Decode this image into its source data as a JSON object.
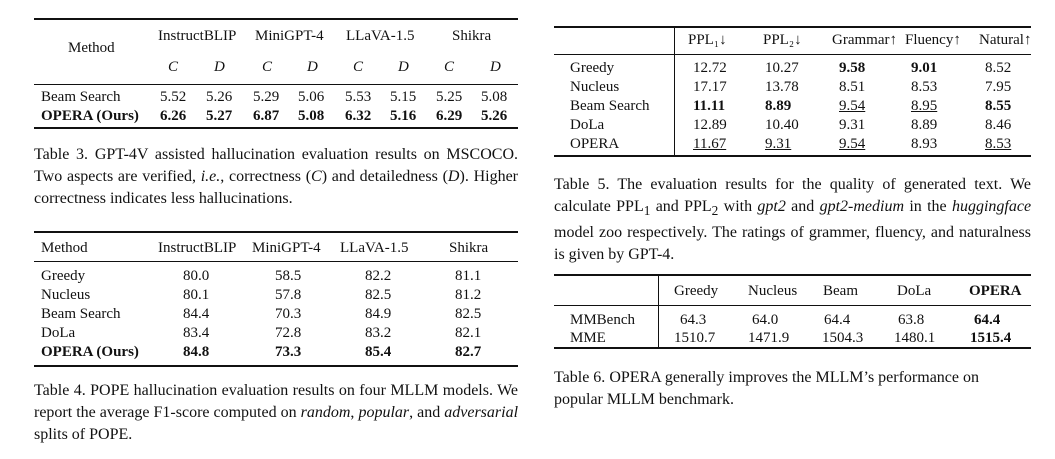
{
  "table3": {
    "header": {
      "method": "Method",
      "models": [
        "InstructBLIP",
        "MiniGPT-4",
        "LLaVA-1.5",
        "Shikra"
      ],
      "sub": [
        "C",
        "D"
      ]
    },
    "rows": [
      {
        "method": "Beam Search",
        "values": [
          "5.52",
          "5.26",
          "5.29",
          "5.06",
          "5.53",
          "5.15",
          "5.25",
          "5.08"
        ],
        "bold": false
      },
      {
        "method": "OPERA (Ours)",
        "values": [
          "6.26",
          "5.27",
          "6.87",
          "5.08",
          "6.32",
          "5.16",
          "6.29",
          "5.26"
        ],
        "bold": true
      }
    ],
    "caption": {
      "label": "Table 3.",
      "p1": "GPT-4V assisted hallucination evaluation results on MSCOCO. Two aspects are verified,",
      "ie": "i.e.",
      "p2": ", correctness (",
      "c": "C",
      "p3": ") and detailedness (",
      "d": "D",
      "p4": "). Higher correctness indicates less hallucinations."
    }
  },
  "table4": {
    "header": [
      "Method",
      "InstructBLIP",
      "MiniGPT-4",
      "LLaVA-1.5",
      "Shikra"
    ],
    "rows": [
      {
        "method": "Greedy",
        "values": [
          "80.0",
          "58.5",
          "82.2",
          "81.1"
        ],
        "bold": false
      },
      {
        "method": "Nucleus",
        "values": [
          "80.1",
          "57.8",
          "82.5",
          "81.2"
        ],
        "bold": false
      },
      {
        "method": "Beam Search",
        "values": [
          "84.4",
          "70.3",
          "84.9",
          "82.5"
        ],
        "bold": false
      },
      {
        "method": "DoLa",
        "values": [
          "83.4",
          "72.8",
          "83.2",
          "82.1"
        ],
        "bold": false
      },
      {
        "method": "OPERA (Ours)",
        "values": [
          "84.8",
          "73.3",
          "85.4",
          "82.7"
        ],
        "bold": true
      }
    ],
    "caption": {
      "label": "Table 4.",
      "p1": "POPE hallucination evaluation results on four MLLM models. We report the average F1-score computed on",
      "random": "random",
      "comma1": ",",
      "popular": "popular",
      "and": ", and",
      "adversarial": "adversarial",
      "p2": "splits of POPE."
    }
  },
  "table5": {
    "header": [
      "PPL₁↓",
      "PPL₂↓",
      "Grammar↑",
      "Fluency↑",
      "Natural↑"
    ],
    "rows": [
      {
        "method": "Greedy",
        "values": [
          "12.72",
          "10.27",
          "9.58",
          "9.01",
          "8.52"
        ],
        "bold": [
          false,
          false,
          true,
          true,
          false
        ],
        "underline": [
          false,
          false,
          false,
          false,
          false
        ]
      },
      {
        "method": "Nucleus",
        "values": [
          "17.17",
          "13.78",
          "8.51",
          "8.53",
          "7.95"
        ],
        "bold": [
          false,
          false,
          false,
          false,
          false
        ],
        "underline": [
          false,
          false,
          false,
          false,
          false
        ]
      },
      {
        "method": "Beam Search",
        "values": [
          "11.11",
          "8.89",
          "9.54",
          "8.95",
          "8.55"
        ],
        "bold": [
          true,
          true,
          false,
          false,
          true
        ],
        "underline": [
          false,
          false,
          true,
          true,
          false
        ]
      },
      {
        "method": "DoLa",
        "values": [
          "12.89",
          "10.40",
          "9.31",
          "8.89",
          "8.46"
        ],
        "bold": [
          false,
          false,
          false,
          false,
          false
        ],
        "underline": [
          false,
          false,
          false,
          false,
          false
        ]
      },
      {
        "method": "OPERA",
        "values": [
          "11.67",
          "9.31",
          "9.54",
          "8.93",
          "8.53"
        ],
        "bold": [
          false,
          false,
          false,
          false,
          false
        ],
        "underline": [
          true,
          true,
          true,
          false,
          true
        ]
      }
    ],
    "caption": {
      "label": "Table 5.",
      "p1": "The evaluation results for the quality of generated text. We calculate PPL",
      "sub1": "1",
      "p2": " and PPL",
      "sub2": "2",
      "p3": " with",
      "gpt2": "gpt2",
      "p4": "and",
      "gpt2m": "gpt2-medium",
      "p5": "in the",
      "hf": "huggingface",
      "p6": "model zoo respectively. The ratings of grammer, fluency, and naturalness is given by GPT-4."
    }
  },
  "table6": {
    "header": [
      "Greedy",
      "Nucleus",
      "Beam",
      "DoLa",
      "OPERA"
    ],
    "rows": [
      {
        "method": "MMBench",
        "values": [
          "64.3",
          "64.0",
          "64.4",
          "63.8",
          "64.4"
        ]
      },
      {
        "method": "MME",
        "values": [
          "1510.7",
          "1471.9",
          "1504.3",
          "1480.1",
          "1515.4"
        ]
      }
    ],
    "caption": {
      "label": "Table 6.",
      "text": "OPERA generally improves the MLLM’s performance on popular MLLM benchmark."
    }
  }
}
